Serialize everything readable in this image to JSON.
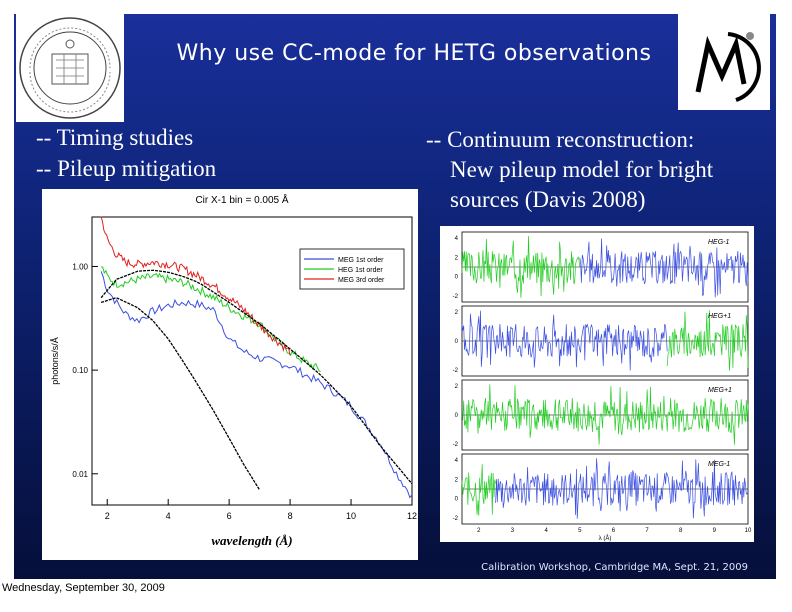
{
  "slide": {
    "title": "Why use CC-mode for HETG observations",
    "bullets_left": [
      "-- Timing studies",
      "--  Pileup mitigation"
    ],
    "bullets_right": [
      "-- Continuum reconstruction:",
      "New pileup model for bright",
      "sources (Davis 2008)"
    ],
    "footer": "Calibration Workshop, Cambridge MA, Sept. 21, 2009"
  },
  "date_caption": "Wednesday, September 30, 2009",
  "colors": {
    "slide_bg": "#10267e",
    "meg1": "#3b4fe0",
    "heg1": "#22cc22",
    "meg3": "#e02020",
    "model": "#000000"
  },
  "logos": {
    "left": "mit-seal-icon",
    "right": "mki-logo-icon"
  },
  "chart_data": [
    {
      "type": "line",
      "title": "Cir X-1  bin = 0.005 Å",
      "xlabel": "wavelength (Å)",
      "ylabel": "photons/s/Å",
      "x_ticks": [
        "2",
        "4",
        "6",
        "8",
        "10",
        "12"
      ],
      "y_ticks": [
        "1.00",
        "0.10",
        "0.01"
      ],
      "ylog": true,
      "xlim": [
        1.5,
        12
      ],
      "ylim": [
        0.005,
        3
      ],
      "legend": {
        "placement": "top-right",
        "entries": [
          "MEG 1st order",
          "HEG 1st order",
          "MEG 3rd order"
        ]
      },
      "series": [
        {
          "name": "MEG 1st order",
          "color": "#3b4fe0",
          "x": [
            1.8,
            2.0,
            2.3,
            2.6,
            3.0,
            3.5,
            4.0,
            4.5,
            5.0,
            5.5,
            6.0,
            6.5,
            7.0,
            7.5,
            8.0,
            8.5,
            9.0,
            9.5,
            10.0,
            10.5,
            11.0,
            11.5,
            12.0
          ],
          "y": [
            0.9,
            0.6,
            0.45,
            0.35,
            0.3,
            0.37,
            0.42,
            0.45,
            0.43,
            0.38,
            0.2,
            0.15,
            0.13,
            0.12,
            0.11,
            0.09,
            0.075,
            0.06,
            0.045,
            0.03,
            0.019,
            0.01,
            0.006
          ]
        },
        {
          "name": "HEG 1st order",
          "color": "#22cc22",
          "x": [
            1.8,
            2.0,
            2.3,
            2.6,
            3.0,
            3.5,
            4.0,
            4.5,
            5.0,
            5.5,
            6.0,
            6.5,
            7.0,
            7.5,
            8.0,
            8.5,
            9.0
          ],
          "y": [
            1.0,
            0.8,
            0.68,
            0.7,
            0.75,
            0.8,
            0.75,
            0.7,
            0.6,
            0.5,
            0.4,
            0.33,
            0.28,
            0.2,
            0.15,
            0.12,
            0.1
          ]
        },
        {
          "name": "MEG 3rd order",
          "color": "#e02020",
          "x": [
            1.8,
            2.0,
            2.3,
            2.6,
            3.0,
            3.5,
            4.0,
            4.5,
            5.0,
            5.5,
            6.0,
            6.5,
            7.0,
            7.5,
            8.0
          ],
          "y": [
            3.0,
            1.8,
            1.3,
            1.1,
            1.05,
            1.1,
            1.05,
            0.95,
            0.8,
            0.65,
            0.5,
            0.38,
            0.27,
            0.2,
            0.15
          ]
        },
        {
          "name": "",
          "color": "#000000",
          "x": [
            1.8,
            2.3,
            3.0,
            3.5,
            4.0,
            4.5,
            5.0,
            6.0,
            7.0,
            8.0,
            9.0,
            10.0,
            11.0,
            12.0
          ],
          "y": [
            0.5,
            0.75,
            0.9,
            0.92,
            0.88,
            0.8,
            0.7,
            0.45,
            0.28,
            0.16,
            0.09,
            0.045,
            0.018,
            0.008
          ]
        },
        {
          "name": "",
          "color": "#000000",
          "x": [
            1.8,
            2.3,
            3.0,
            3.5,
            4.0,
            4.5,
            5.0,
            5.5,
            6.0,
            6.5,
            7.0
          ],
          "y": [
            0.45,
            0.5,
            0.4,
            0.3,
            0.2,
            0.12,
            0.07,
            0.04,
            0.022,
            0.012,
            0.007
          ]
        }
      ]
    },
    {
      "type": "line",
      "x_ticks": [
        "2",
        "3",
        "4",
        "5",
        "6",
        "7",
        "8",
        "9",
        "10"
      ],
      "xlabel": "λ (Å)",
      "panels": [
        {
          "label": "HEG-1",
          "y_ticks": [
            "4",
            "2",
            "0",
            "-2"
          ]
        },
        {
          "label": "HEG+1",
          "y_ticks": [
            "2",
            "0",
            "-2"
          ]
        },
        {
          "label": "MEG+1",
          "y_ticks": [
            "2",
            "0",
            "-2"
          ]
        },
        {
          "label": "MEG-1",
          "y_ticks": [
            "4",
            "2",
            "0",
            "-2"
          ]
        }
      ]
    }
  ]
}
